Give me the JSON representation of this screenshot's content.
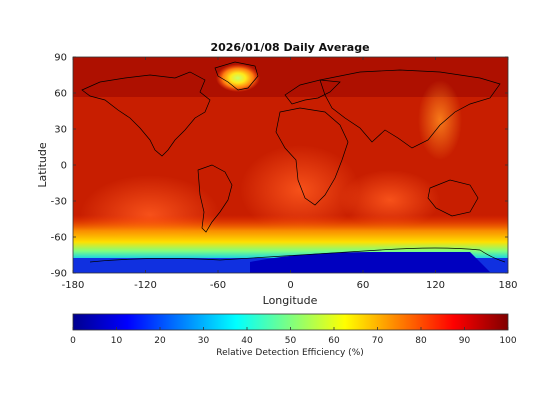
{
  "chart_data": {
    "type": "heatmap",
    "title": "2026/01/08 Daily Average",
    "xlabel": "Longitude",
    "ylabel": "Latitude",
    "xlim": [
      -180,
      180
    ],
    "ylim": [
      -90,
      90
    ],
    "x_ticks": [
      -180,
      -120,
      -60,
      0,
      60,
      120,
      180
    ],
    "y_ticks": [
      -90,
      -60,
      -30,
      0,
      30,
      60,
      90
    ],
    "colormap": "jet",
    "colorbar": {
      "label": "Relative Detection Efficiency (%)",
      "range": [
        0,
        100
      ],
      "ticks": [
        0,
        10,
        20,
        30,
        40,
        50,
        60,
        70,
        80,
        90,
        100
      ],
      "orientation": "horizontal",
      "placement": "bottom"
    },
    "grid": false,
    "overlay": "coastlines"
  }
}
